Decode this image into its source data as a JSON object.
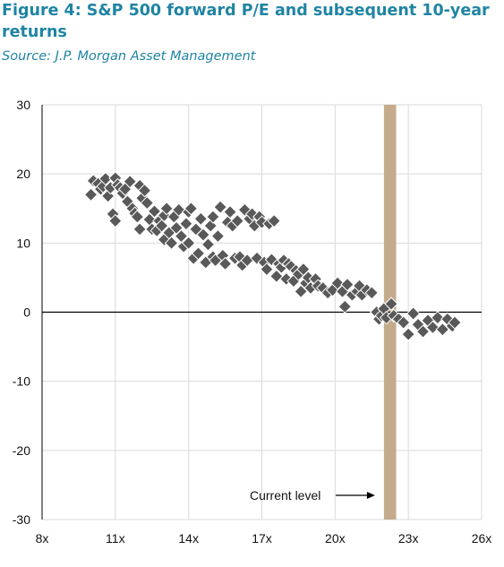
{
  "header": {
    "title": "Figure 4: S&P 500 forward P/E and subsequent 10-year returns",
    "source": "Source: J.P. Morgan Asset Management"
  },
  "colors": {
    "title": "#1f84a3",
    "marker": "#595959",
    "marker_stroke": "#ffffff",
    "highlight_band": "#c4ab8c",
    "grid": "#d9d9d9",
    "zero_line": "#000000"
  },
  "chart_data": {
    "type": "scatter",
    "title": "",
    "xlabel": "",
    "ylabel": "",
    "xlim": [
      8,
      26
    ],
    "ylim": [
      -30,
      30
    ],
    "x_ticks": [
      8,
      11,
      14,
      17,
      20,
      23,
      26
    ],
    "x_tick_labels": [
      "8x",
      "11x",
      "14x",
      "17x",
      "20x",
      "23x",
      "26x"
    ],
    "y_ticks": [
      30,
      20,
      10,
      0,
      -10,
      -20,
      -30
    ],
    "y_tick_labels": [
      "30",
      "20",
      "10",
      "0",
      "-10",
      "-20",
      "-30"
    ],
    "grid": true,
    "highlight": {
      "x_from": 22.0,
      "x_to": 22.5,
      "label": "Current level"
    },
    "marker": "diamond",
    "points": [
      [
        10.0,
        17.0
      ],
      [
        10.1,
        19.0
      ],
      [
        10.3,
        18.6
      ],
      [
        10.4,
        17.8
      ],
      [
        10.5,
        18.2
      ],
      [
        10.6,
        19.3
      ],
      [
        10.7,
        16.8
      ],
      [
        10.8,
        18.0
      ],
      [
        10.9,
        14.2
      ],
      [
        11.0,
        13.2
      ],
      [
        11.0,
        19.4
      ],
      [
        11.1,
        18.4
      ],
      [
        11.2,
        18.0
      ],
      [
        11.3,
        17.2
      ],
      [
        11.4,
        17.8
      ],
      [
        11.5,
        16.0
      ],
      [
        11.6,
        18.9
      ],
      [
        11.7,
        15.0
      ],
      [
        11.8,
        14.3
      ],
      [
        11.9,
        13.8
      ],
      [
        12.0,
        12.0
      ],
      [
        12.0,
        18.3
      ],
      [
        12.1,
        16.5
      ],
      [
        12.2,
        17.6
      ],
      [
        12.3,
        15.8
      ],
      [
        12.4,
        13.4
      ],
      [
        12.5,
        12.0
      ],
      [
        12.6,
        14.6
      ],
      [
        12.7,
        11.8
      ],
      [
        12.8,
        13.2
      ],
      [
        12.9,
        12.5
      ],
      [
        13.0,
        10.5
      ],
      [
        13.0,
        14.0
      ],
      [
        13.1,
        15.0
      ],
      [
        13.2,
        11.5
      ],
      [
        13.3,
        10.0
      ],
      [
        13.4,
        13.8
      ],
      [
        13.5,
        12.2
      ],
      [
        13.6,
        14.8
      ],
      [
        13.7,
        11.0
      ],
      [
        13.8,
        9.5
      ],
      [
        13.9,
        12.8
      ],
      [
        14.0,
        14.5
      ],
      [
        14.0,
        10.0
      ],
      [
        14.1,
        15.0
      ],
      [
        14.2,
        7.8
      ],
      [
        14.3,
        12.0
      ],
      [
        14.4,
        8.5
      ],
      [
        14.5,
        13.5
      ],
      [
        14.6,
        11.2
      ],
      [
        14.7,
        7.2
      ],
      [
        14.8,
        9.8
      ],
      [
        14.9,
        12.5
      ],
      [
        15.0,
        8.0
      ],
      [
        15.0,
        13.8
      ],
      [
        15.1,
        7.5
      ],
      [
        15.2,
        11.0
      ],
      [
        15.3,
        15.2
      ],
      [
        15.4,
        8.2
      ],
      [
        15.5,
        7.0
      ],
      [
        15.6,
        13.0
      ],
      [
        15.7,
        14.5
      ],
      [
        15.8,
        12.5
      ],
      [
        15.9,
        7.8
      ],
      [
        16.0,
        13.2
      ],
      [
        16.1,
        8.0
      ],
      [
        16.2,
        6.8
      ],
      [
        16.3,
        14.8
      ],
      [
        16.4,
        7.5
      ],
      [
        16.5,
        13.5
      ],
      [
        16.6,
        14.2
      ],
      [
        16.7,
        12.5
      ],
      [
        16.8,
        7.8
      ],
      [
        16.9,
        13.8
      ],
      [
        17.0,
        13.0
      ],
      [
        17.1,
        7.2
      ],
      [
        17.2,
        6.2
      ],
      [
        17.3,
        12.8
      ],
      [
        17.4,
        7.6
      ],
      [
        17.5,
        13.2
      ],
      [
        17.6,
        5.2
      ],
      [
        17.7,
        7.0
      ],
      [
        17.8,
        6.5
      ],
      [
        17.9,
        7.5
      ],
      [
        18.0,
        4.8
      ],
      [
        18.1,
        7.0
      ],
      [
        18.2,
        6.6
      ],
      [
        18.3,
        4.5
      ],
      [
        18.4,
        6.0
      ],
      [
        18.5,
        5.5
      ],
      [
        18.6,
        3.0
      ],
      [
        18.7,
        6.2
      ],
      [
        18.8,
        4.2
      ],
      [
        18.9,
        5.0
      ],
      [
        19.0,
        3.5
      ],
      [
        19.2,
        4.8
      ],
      [
        19.3,
        3.8
      ],
      [
        19.5,
        3.5
      ],
      [
        19.7,
        2.8
      ],
      [
        19.9,
        3.2
      ],
      [
        20.1,
        4.2
      ],
      [
        20.3,
        3.0
      ],
      [
        20.4,
        0.8
      ],
      [
        20.5,
        4.0
      ],
      [
        20.7,
        2.5
      ],
      [
        20.9,
        3.0
      ],
      [
        21.0,
        3.8
      ],
      [
        21.1,
        2.5
      ],
      [
        21.3,
        3.2
      ],
      [
        21.5,
        2.8
      ],
      [
        21.7,
        0.0
      ],
      [
        21.8,
        -1.0
      ],
      [
        21.9,
        -0.5
      ],
      [
        22.0,
        0.5
      ],
      [
        22.1,
        -0.8
      ],
      [
        22.3,
        1.2
      ],
      [
        22.4,
        -0.5
      ],
      [
        22.6,
        -1.0
      ],
      [
        22.8,
        -1.5
      ],
      [
        23.0,
        -3.2
      ],
      [
        23.2,
        -0.2
      ],
      [
        23.4,
        -1.8
      ],
      [
        23.6,
        -2.8
      ],
      [
        23.8,
        -1.2
      ],
      [
        24.0,
        -2.2
      ],
      [
        24.2,
        -0.8
      ],
      [
        24.4,
        -2.5
      ],
      [
        24.6,
        -1.0
      ],
      [
        24.8,
        -2.0
      ],
      [
        24.9,
        -1.5
      ]
    ]
  }
}
